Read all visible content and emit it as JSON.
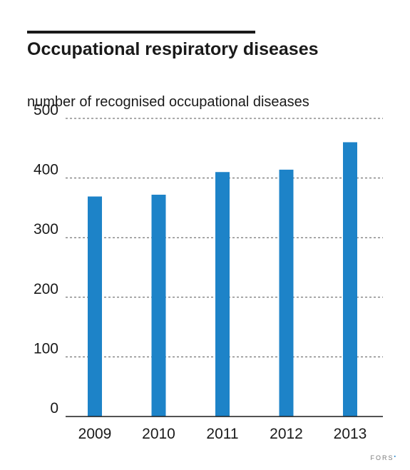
{
  "chart_data": {
    "type": "bar",
    "title": "Occupational respiratory diseases",
    "ylabel": "number of recognised occupational diseases",
    "xlabel": "",
    "categories": [
      "2009",
      "2010",
      "2011",
      "2012",
      "2013"
    ],
    "values": [
      369,
      372,
      410,
      414,
      460
    ],
    "ylim": [
      0,
      500
    ],
    "yticks": [
      0,
      100,
      200,
      300,
      400,
      500
    ],
    "grid": true,
    "bar_color": "#1d83c8"
  },
  "source": {
    "label": "FORS",
    "mark": "▪"
  }
}
